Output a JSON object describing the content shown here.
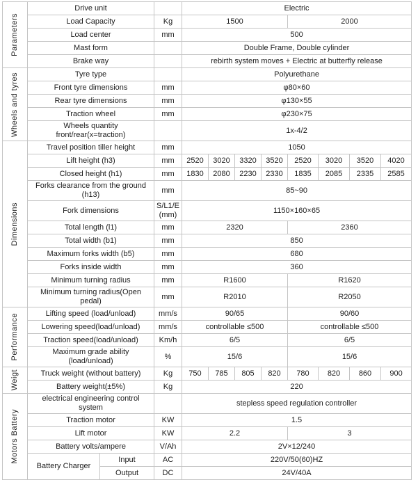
{
  "table": {
    "sections": [
      {
        "label": "Parameters",
        "rows": [
          {
            "name": "Drive unit",
            "unit": "",
            "values": [
              {
                "t": "Electric",
                "s": 8
              }
            ]
          },
          {
            "name": "Load Capacity",
            "unit": "Kg",
            "values": [
              {
                "t": "1500",
                "s": 4
              },
              {
                "t": "2000",
                "s": 4
              }
            ]
          },
          {
            "name": "Load center",
            "unit": "mm",
            "values": [
              {
                "t": "500",
                "s": 8
              }
            ]
          },
          {
            "name": "Mast form",
            "unit": "",
            "values": [
              {
                "t": "Double Frame, Double cylinder",
                "s": 8
              }
            ]
          },
          {
            "name": "Brake way",
            "unit": "",
            "values": [
              {
                "t": "rebirth system moves + Electric at butterfly release",
                "s": 8
              }
            ]
          }
        ]
      },
      {
        "label": "Wheels and tyres",
        "rows": [
          {
            "name": "Tyre type",
            "unit": "",
            "values": [
              {
                "t": "Polyurethane",
                "s": 8
              }
            ]
          },
          {
            "name": "Front tyre dimensions",
            "unit": "mm",
            "values": [
              {
                "t": "φ80×60",
                "s": 8
              }
            ]
          },
          {
            "name": "Rear tyre dimensions",
            "unit": "mm",
            "values": [
              {
                "t": "φ130×55",
                "s": 8
              }
            ]
          },
          {
            "name": "Traction wheel",
            "unit": "mm",
            "values": [
              {
                "t": "φ230×75",
                "s": 8
              }
            ]
          },
          {
            "name": "Wheels quantity front/rear(x=traction)",
            "unit": "",
            "values": [
              {
                "t": "1x-4/2",
                "s": 8
              }
            ]
          }
        ]
      },
      {
        "label": "Dimensions",
        "rows": [
          {
            "name": "Travel position tiller height",
            "unit": "mm",
            "values": [
              {
                "t": "1050",
                "s": 8
              }
            ]
          },
          {
            "name": "Lift height (h3)",
            "unit": "mm",
            "values": [
              {
                "t": "2520",
                "s": 1
              },
              {
                "t": "3020",
                "s": 1
              },
              {
                "t": "3320",
                "s": 1
              },
              {
                "t": "3520",
                "s": 1
              },
              {
                "t": "2520",
                "s": 1
              },
              {
                "t": "3020",
                "s": 1
              },
              {
                "t": "3520",
                "s": 1
              },
              {
                "t": "4020",
                "s": 1
              }
            ]
          },
          {
            "name": "Closed height (h1)",
            "unit": "mm",
            "values": [
              {
                "t": "1830",
                "s": 1
              },
              {
                "t": "2080",
                "s": 1
              },
              {
                "t": "2230",
                "s": 1
              },
              {
                "t": "2330",
                "s": 1
              },
              {
                "t": "1835",
                "s": 1
              },
              {
                "t": "2085",
                "s": 1
              },
              {
                "t": "2335",
                "s": 1
              },
              {
                "t": "2585",
                "s": 1
              }
            ]
          },
          {
            "name": "Forks clearance from the ground (h13)",
            "unit": "mm",
            "values": [
              {
                "t": "85~90",
                "s": 8
              }
            ]
          },
          {
            "name": "Fork dimensions",
            "unit": "S/L1/E (mm)",
            "values": [
              {
                "t": "1150×160×65",
                "s": 8
              }
            ]
          },
          {
            "name": "Total length (l1)",
            "unit": "mm",
            "values": [
              {
                "t": "2320",
                "s": 4
              },
              {
                "t": "2360",
                "s": 4
              }
            ]
          },
          {
            "name": "Total width (b1)",
            "unit": "mm",
            "values": [
              {
                "t": "850",
                "s": 8
              }
            ]
          },
          {
            "name": "Maximum forks width (b5)",
            "unit": "mm",
            "values": [
              {
                "t": "680",
                "s": 8
              }
            ]
          },
          {
            "name": "Forks inside width",
            "unit": "mm",
            "values": [
              {
                "t": "360",
                "s": 8
              }
            ]
          },
          {
            "name": "Minimum turning radius",
            "unit": "mm",
            "values": [
              {
                "t": "R1600",
                "s": 4
              },
              {
                "t": "R1620",
                "s": 4
              }
            ]
          },
          {
            "name": "Minimum turning radius(Open pedal)",
            "unit": "mm",
            "values": [
              {
                "t": "R2010",
                "s": 4
              },
              {
                "t": "R2050",
                "s": 4
              }
            ]
          }
        ]
      },
      {
        "label": "Performance",
        "rows": [
          {
            "name": "Lifting speed (load/unload)",
            "unit": "mm/s",
            "values": [
              {
                "t": "90/65",
                "s": 4
              },
              {
                "t": "90/60",
                "s": 4
              }
            ]
          },
          {
            "name": "Lowering speed(load/unload)",
            "unit": "mm/s",
            "values": [
              {
                "t": "controllable ≤500",
                "s": 4
              },
              {
                "t": "controllable ≤500",
                "s": 4
              }
            ]
          },
          {
            "name": "Traction speed(load/unload)",
            "unit": "Km/h",
            "values": [
              {
                "t": "6/5",
                "s": 4
              },
              {
                "t": "6/5",
                "s": 4
              }
            ]
          },
          {
            "name": "Maximum grade ability (load/unload)",
            "unit": "%",
            "values": [
              {
                "t": "15/6",
                "s": 4
              },
              {
                "t": "15/6",
                "s": 4
              }
            ]
          }
        ]
      },
      {
        "label": "Weigt",
        "rows": [
          {
            "name": "Truck weight (without battery)",
            "unit": "Kg",
            "values": [
              {
                "t": "750",
                "s": 1
              },
              {
                "t": "785",
                "s": 1
              },
              {
                "t": "805",
                "s": 1
              },
              {
                "t": "820",
                "s": 1
              },
              {
                "t": "780",
                "s": 1
              },
              {
                "t": "820",
                "s": 1
              },
              {
                "t": "860",
                "s": 1
              },
              {
                "t": "900",
                "s": 1
              }
            ]
          },
          {
            "name": "Battery weight(±5%)",
            "unit": "Kg",
            "values": [
              {
                "t": "220",
                "s": 8
              }
            ]
          }
        ]
      },
      {
        "label": "Motors Battery",
        "rows": [
          {
            "name": "electrical engineering control system",
            "unit": "",
            "values": [
              {
                "t": "stepless speed regulation controller",
                "s": 8
              }
            ]
          },
          {
            "name": "Traction motor",
            "unit": "KW",
            "values": [
              {
                "t": "1.5",
                "s": 8
              }
            ]
          },
          {
            "name": "Lift motor",
            "unit": "KW",
            "values": [
              {
                "t": "2.2",
                "s": 4
              },
              {
                "t": "3",
                "s": 4
              }
            ]
          },
          {
            "name": "Battery volts/ampere",
            "unit": "V/Ah",
            "values": [
              {
                "t": "2V×12/240",
                "s": 8
              }
            ]
          },
          {
            "name": "Battery Charger",
            "group_rows": 2,
            "sub": "Input",
            "unit": "AC",
            "values": [
              {
                "t": "220V/50(60)HZ",
                "s": 8
              }
            ]
          },
          {
            "sub": "Output",
            "unit": "DC",
            "values": [
              {
                "t": "24V/40A",
                "s": 8
              }
            ]
          }
        ]
      }
    ]
  }
}
